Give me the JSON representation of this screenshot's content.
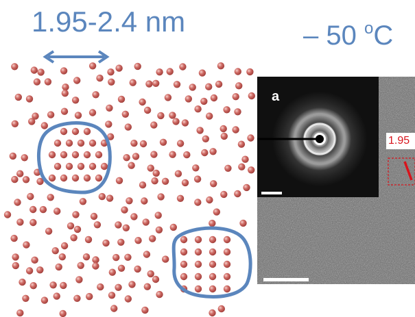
{
  "labels": {
    "cluster_size": "1.95-2.4 nm",
    "temperature_value": "– 50 ",
    "temperature_degree": "o",
    "temperature_unit": "C",
    "panel_letter": "a",
    "lattice_spacing": "1.95"
  },
  "colors": {
    "annotation_blue": "#5b86bd",
    "atom_red": "#c0504d",
    "highlight_red": "#d8141c",
    "tem_dark": "#111111"
  },
  "icons": {
    "size_indicator": "double-arrow-icon",
    "measurement_marker": "red-line-marker"
  }
}
